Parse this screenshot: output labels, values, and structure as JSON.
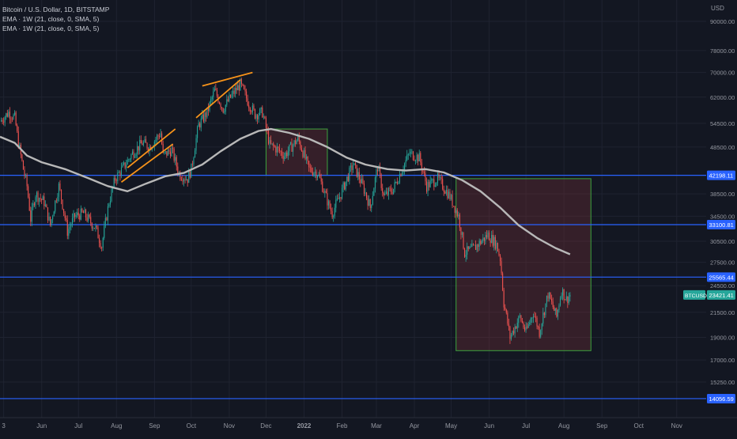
{
  "legend": {
    "title": "Bitcoin / U.S. Dollar, 1D, BITSTAMP",
    "indicator_1": "EMA · 1W (21, close, 0, SMA, 5)",
    "indicator_2": "EMA · 1W (21, close, 0, SMA, 5)"
  },
  "colors": {
    "background": "#131722",
    "grid": "#1f2330",
    "up": "#26a69a",
    "down": "#ef5350",
    "ema": "#b8b8b8",
    "support": "#2962ff",
    "trendline": "#f7931a",
    "box_fill": "rgba(128,50,55,0.32)",
    "box_stroke": "#3da33d",
    "axis_text": "#9598a1",
    "price_badge": "#26a69a"
  },
  "chart_data": {
    "type": "candlestick",
    "symbol": "BTCUSD",
    "currency": "USD",
    "price_scale": "log",
    "x_range": [
      "2021-04-28",
      "2022-11-25"
    ],
    "y_range": [
      12800,
      100000
    ],
    "x_ticks": [
      {
        "label": "3",
        "date": "2021-05-01"
      },
      {
        "label": "Jun",
        "date": "2021-06-01"
      },
      {
        "label": "Jul",
        "date": "2021-07-01"
      },
      {
        "label": "Aug",
        "date": "2021-08-01"
      },
      {
        "label": "Sep",
        "date": "2021-09-01"
      },
      {
        "label": "Oct",
        "date": "2021-10-01"
      },
      {
        "label": "Nov",
        "date": "2021-11-01"
      },
      {
        "label": "Dec",
        "date": "2021-12-01"
      },
      {
        "label": "2022",
        "date": "2022-01-01"
      },
      {
        "label": "Feb",
        "date": "2022-02-01"
      },
      {
        "label": "Mar",
        "date": "2022-03-01"
      },
      {
        "label": "Apr",
        "date": "2022-04-01"
      },
      {
        "label": "May",
        "date": "2022-05-01"
      },
      {
        "label": "Jun",
        "date": "2022-06-01"
      },
      {
        "label": "Jul",
        "date": "2022-07-01"
      },
      {
        "label": "Aug",
        "date": "2022-08-01"
      },
      {
        "label": "Sep",
        "date": "2022-09-01"
      },
      {
        "label": "Oct",
        "date": "2022-10-01"
      },
      {
        "label": "Nov",
        "date": "2022-11-01"
      }
    ],
    "y_ticks": [
      {
        "label": "90000.00",
        "value": 90000
      },
      {
        "label": "78000.00",
        "value": 78000
      },
      {
        "label": "70000.00",
        "value": 70000
      },
      {
        "label": "62000.00",
        "value": 62000
      },
      {
        "label": "54500.00",
        "value": 54500
      },
      {
        "label": "48500.00",
        "value": 48500
      },
      {
        "label": "38500.00",
        "value": 38500
      },
      {
        "label": "34500.00",
        "value": 34500
      },
      {
        "label": "30500.00",
        "value": 30500
      },
      {
        "label": "27500.00",
        "value": 27500
      },
      {
        "label": "24500.00",
        "value": 24500
      },
      {
        "label": "21500.00",
        "value": 21500
      },
      {
        "label": "19000.00",
        "value": 19000
      },
      {
        "label": "17000.00",
        "value": 17000
      },
      {
        "label": "15250.00",
        "value": 15250
      }
    ],
    "horizontal_lines": [
      {
        "value": 42198.11,
        "label": "42198.11"
      },
      {
        "value": 33100.81,
        "label": "33100.81"
      },
      {
        "value": 25565.44,
        "label": "25565.44"
      },
      {
        "value": 14056.59,
        "label": "14056.59"
      }
    ],
    "last_price": {
      "value": 23421.41,
      "label": "23421.41",
      "tag": "BTCUSD"
    },
    "rectangles": [
      {
        "start": "2021-12-01",
        "end": "2022-01-20",
        "top": 53000,
        "bottom": 42198.11
      },
      {
        "start": "2022-05-05",
        "end": "2022-08-23",
        "top": 41500,
        "bottom": 17800
      }
    ],
    "trendlines": [
      {
        "points": [
          [
            "2021-08-10",
            43800
          ],
          [
            "2021-09-18",
            53000
          ]
        ]
      },
      {
        "points": [
          [
            "2021-08-05",
            40800
          ],
          [
            "2021-09-16",
            49200
          ]
        ]
      },
      {
        "points": [
          [
            "2021-10-05",
            56000
          ],
          [
            "2021-11-10",
            67500
          ]
        ]
      },
      {
        "points": [
          [
            "2021-10-10",
            65500
          ],
          [
            "2021-11-20",
            70000
          ]
        ]
      }
    ],
    "ema_points": [
      [
        "2021-04-28",
        51000
      ],
      [
        "2021-05-10",
        49500
      ],
      [
        "2021-05-20",
        46500
      ],
      [
        "2021-06-01",
        45000
      ],
      [
        "2021-06-20",
        43500
      ],
      [
        "2021-07-10",
        41500
      ],
      [
        "2021-07-25",
        40000
      ],
      [
        "2021-08-10",
        39000
      ],
      [
        "2021-08-25",
        40500
      ],
      [
        "2021-09-10",
        42000
      ],
      [
        "2021-09-25",
        42700
      ],
      [
        "2021-10-10",
        44500
      ],
      [
        "2021-10-25",
        47500
      ],
      [
        "2021-11-10",
        50500
      ],
      [
        "2021-11-25",
        52500
      ],
      [
        "2021-12-05",
        53000
      ],
      [
        "2021-12-20",
        52000
      ],
      [
        "2022-01-05",
        50500
      ],
      [
        "2022-01-20",
        48500
      ],
      [
        "2022-02-05",
        46000
      ],
      [
        "2022-02-20",
        44500
      ],
      [
        "2022-03-10",
        43500
      ],
      [
        "2022-03-25",
        43200
      ],
      [
        "2022-04-10",
        43500
      ],
      [
        "2022-04-25",
        42800
      ],
      [
        "2022-05-10",
        41200
      ],
      [
        "2022-05-25",
        39000
      ],
      [
        "2022-06-10",
        36000
      ],
      [
        "2022-06-25",
        33000
      ],
      [
        "2022-07-10",
        31000
      ],
      [
        "2022-07-25",
        29500
      ],
      [
        "2022-08-06",
        28600
      ]
    ],
    "price_path": [
      [
        "2021-04-28",
        55000
      ],
      [
        "2021-05-05",
        57500
      ],
      [
        "2021-05-10",
        56000
      ],
      [
        "2021-05-13",
        49500
      ],
      [
        "2021-05-17",
        43500
      ],
      [
        "2021-05-20",
        40000
      ],
      [
        "2021-05-23",
        34000
      ],
      [
        "2021-05-27",
        38500
      ],
      [
        "2021-06-03",
        37000
      ],
      [
        "2021-06-08",
        33000
      ],
      [
        "2021-06-15",
        40000
      ],
      [
        "2021-06-22",
        32000
      ],
      [
        "2021-06-28",
        34500
      ],
      [
        "2021-07-05",
        35000
      ],
      [
        "2021-07-15",
        32500
      ],
      [
        "2021-07-20",
        29800
      ],
      [
        "2021-07-26",
        37000
      ],
      [
        "2021-07-31",
        41500
      ],
      [
        "2021-08-07",
        44000
      ],
      [
        "2021-08-14",
        47000
      ],
      [
        "2021-08-22",
        49500
      ],
      [
        "2021-08-28",
        48500
      ],
      [
        "2021-09-06",
        52000
      ],
      [
        "2021-09-08",
        46500
      ],
      [
        "2021-09-15",
        47800
      ],
      [
        "2021-09-21",
        42500
      ],
      [
        "2021-09-28",
        41500
      ],
      [
        "2021-10-01",
        43500
      ],
      [
        "2021-10-07",
        54000
      ],
      [
        "2021-10-14",
        57500
      ],
      [
        "2021-10-20",
        64000
      ],
      [
        "2021-10-27",
        58500
      ],
      [
        "2021-11-03",
        62500
      ],
      [
        "2021-11-10",
        66000
      ],
      [
        "2021-11-17",
        60000
      ],
      [
        "2021-11-22",
        57000
      ],
      [
        "2021-11-28",
        57500
      ],
      [
        "2021-12-04",
        49000
      ],
      [
        "2021-12-10",
        48000
      ],
      [
        "2021-12-16",
        46500
      ],
      [
        "2021-12-27",
        50500
      ],
      [
        "2022-01-05",
        43500
      ],
      [
        "2022-01-12",
        42700
      ],
      [
        "2022-01-21",
        36500
      ],
      [
        "2022-01-24",
        35000
      ],
      [
        "2022-01-31",
        38500
      ],
      [
        "2022-02-10",
        44500
      ],
      [
        "2022-02-18",
        40000
      ],
      [
        "2022-02-24",
        36000
      ],
      [
        "2022-03-02",
        44000
      ],
      [
        "2022-03-07",
        38000
      ],
      [
        "2022-03-15",
        39500
      ],
      [
        "2022-03-28",
        47000
      ],
      [
        "2022-04-05",
        46000
      ],
      [
        "2022-04-11",
        40000
      ],
      [
        "2022-04-20",
        41500
      ],
      [
        "2022-04-30",
        38000
      ],
      [
        "2022-05-07",
        34500
      ],
      [
        "2022-05-12",
        28800
      ],
      [
        "2022-05-20",
        29500
      ],
      [
        "2022-05-31",
        31500
      ],
      [
        "2022-06-07",
        30000
      ],
      [
        "2022-06-10",
        28000
      ],
      [
        "2022-06-13",
        22500
      ],
      [
        "2022-06-18",
        19000
      ],
      [
        "2022-06-26",
        21000
      ],
      [
        "2022-07-01",
        19500
      ],
      [
        "2022-07-07",
        21500
      ],
      [
        "2022-07-12",
        19500
      ],
      [
        "2022-07-19",
        23500
      ],
      [
        "2022-07-26",
        21000
      ],
      [
        "2022-07-30",
        24000
      ],
      [
        "2022-08-03",
        22900
      ],
      [
        "2022-08-06",
        23421
      ]
    ]
  }
}
